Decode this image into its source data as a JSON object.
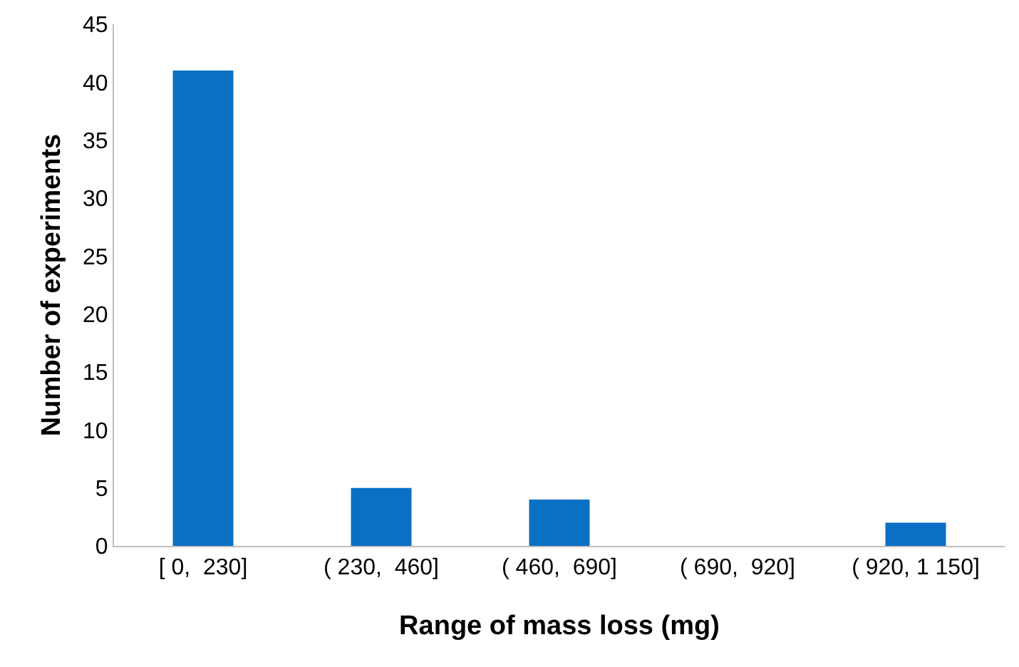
{
  "chart_data": {
    "type": "bar",
    "xlabel": "Range of mass loss (mg)",
    "ylabel": "Number of experiments",
    "categories": [
      "[ 0,  230]",
      "( 230,  460]",
      "( 460,  690]",
      "( 690,  920]",
      "( 920, 1 150]"
    ],
    "values": [
      41,
      5,
      4,
      0,
      2
    ],
    "color": "#0a70c4",
    "ylim": [
      0,
      45
    ],
    "yticks": [
      0,
      5,
      10,
      15,
      20,
      25,
      30,
      35,
      40,
      45
    ],
    "legend": false
  }
}
